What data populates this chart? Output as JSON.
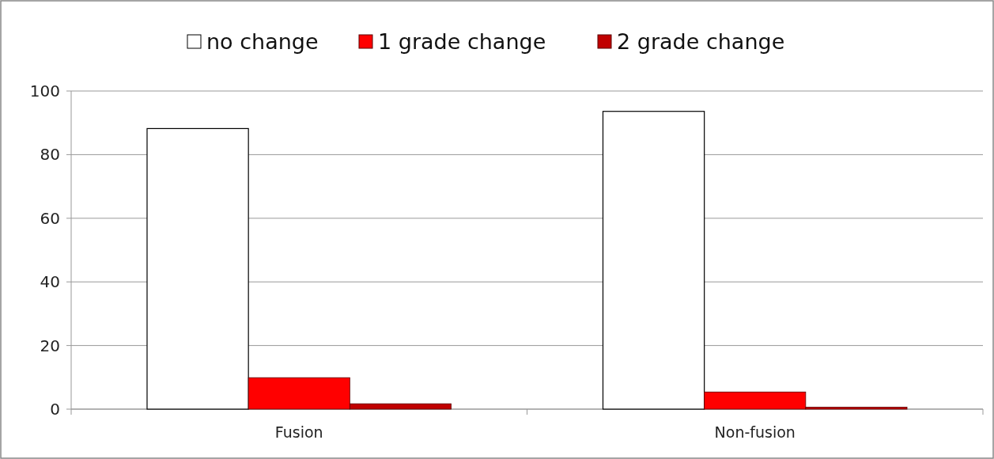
{
  "chart_data": {
    "type": "bar",
    "categories": [
      "Fusion",
      "Non-fusion"
    ],
    "series": [
      {
        "name": "no change",
        "color": "#ffffff",
        "values": [
          88.2,
          93.6
        ]
      },
      {
        "name": "1 grade change",
        "color": "#ff0000",
        "values": [
          9.9,
          5.4
        ]
      },
      {
        "name": "2 grade change",
        "color": "#c00000",
        "values": [
          1.7,
          0.6
        ]
      }
    ],
    "ylim": [
      0,
      100
    ],
    "yticks": [
      0,
      20,
      40,
      60,
      80,
      100
    ],
    "grid": "y",
    "legend": "top"
  }
}
